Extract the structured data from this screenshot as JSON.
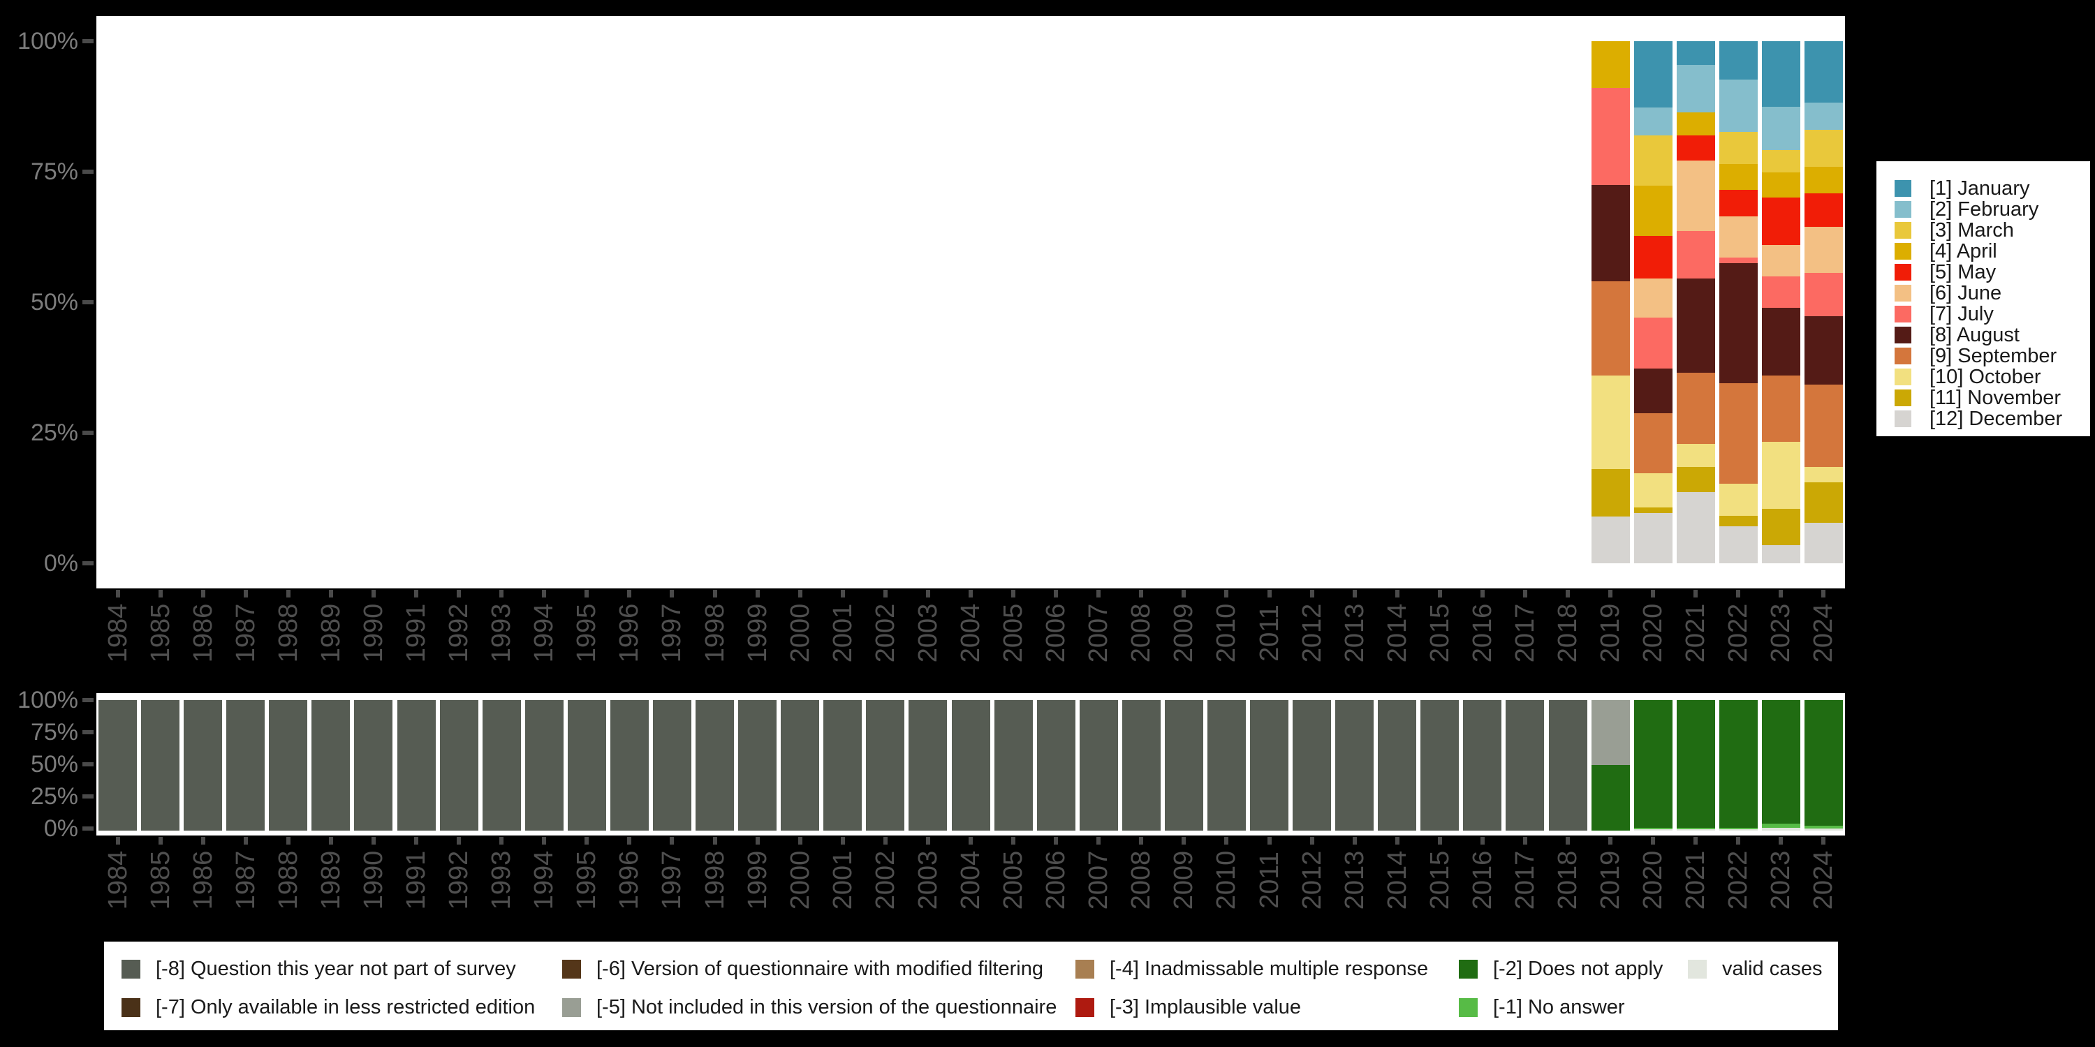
{
  "axes": {
    "y_tick_labels": [
      "100%",
      "75%",
      "50%",
      "25%",
      "0%"
    ],
    "y_tick_values": [
      100,
      75,
      50,
      25,
      0
    ],
    "years": [
      "1984",
      "1985",
      "1986",
      "1987",
      "1988",
      "1989",
      "1990",
      "1991",
      "1992",
      "1993",
      "1994",
      "1995",
      "1996",
      "1997",
      "1998",
      "1999",
      "2000",
      "2001",
      "2002",
      "2003",
      "2004",
      "2005",
      "2006",
      "2007",
      "2008",
      "2009",
      "2010",
      "2011",
      "2012",
      "2013",
      "2014",
      "2015",
      "2016",
      "2017",
      "2018",
      "2019",
      "2020",
      "2021",
      "2022",
      "2023",
      "2024"
    ]
  },
  "legend_months": {
    "items": [
      {
        "label": "[1] January",
        "color": "#3D93AE"
      },
      {
        "label": "[2] February",
        "color": "#85BECC"
      },
      {
        "label": "[3] March",
        "color": "#E9C83B"
      },
      {
        "label": "[4] April",
        "color": "#DCAE00"
      },
      {
        "label": "[5] May",
        "color": "#F11D07"
      },
      {
        "label": "[6] June",
        "color": "#F3C084"
      },
      {
        "label": "[7] July",
        "color": "#FC6A62"
      },
      {
        "label": "[8] August",
        "color": "#541B16"
      },
      {
        "label": "[9] September",
        "color": "#D4763C"
      },
      {
        "label": "[10] October",
        "color": "#F2E080"
      },
      {
        "label": "[11] November",
        "color": "#CBA805"
      },
      {
        "label": "[12] December",
        "color": "#D6D4D1"
      }
    ]
  },
  "legend_missing": {
    "columns": [
      [
        {
          "label": "[-8] Question this year not part of survey",
          "color": "#565C53"
        },
        {
          "label": "[-7] Only available in less restricted edition",
          "color": "#4A3118"
        }
      ],
      [
        {
          "label": "[-6] Version of questionnaire with modified filtering",
          "color": "#543619"
        },
        {
          "label": "[-5] Not included in this version of the questionnaire",
          "color": "#999E94"
        }
      ],
      [
        {
          "label": "[-4] Inadmissable multiple response",
          "color": "#A87F52"
        },
        {
          "label": "[-3] Implausible value",
          "color": "#AE1A10"
        }
      ],
      [
        {
          "label": "[-2] Does not apply",
          "color": "#206C12"
        },
        {
          "label": "[-1] No answer",
          "color": "#57BB46"
        }
      ],
      [
        {
          "label": "valid cases",
          "color": "#E2E6DE"
        }
      ]
    ]
  },
  "chart_data": [
    {
      "type": "bar",
      "stacked": true,
      "unit": "percent",
      "title": "",
      "xlabel": "",
      "ylabel": "",
      "ylim": [
        0,
        100
      ],
      "grid": false,
      "legend_position": "right",
      "categories_ref": "axes.years",
      "note_years_without_bars": "1984-2018 have no valid cases, no bars drawn",
      "stack_order_top_to_bottom_ref": "legend_months.items",
      "values_by_year": {
        "2019": {
          "[4] April": 9.0,
          "[7] July": 18.5,
          "[8] August": 18.5,
          "[9] September": 18.0,
          "[10] October": 18.0,
          "[11] November": 9.0,
          "[12] December": 9.0
        },
        "2020": {
          "[1] January": 12.7,
          "[2] February": 5.4,
          "[3] March": 9.6,
          "[4] April": 9.6,
          "[5] May": 8.2,
          "[6] June": 7.4,
          "[7] July": 9.8,
          "[8] August": 8.6,
          "[9] September": 11.4,
          "[10] October": 6.6,
          "[11] November": 1.1,
          "[12] December": 9.6
        },
        "2021": {
          "[1] January": 4.5,
          "[2] February": 9.1,
          "[4] April": 4.5,
          "[5] May": 4.7,
          "[6] June": 13.6,
          "[7] July": 9.1,
          "[8] August": 18.0,
          "[9] September": 13.6,
          "[10] October": 4.4,
          "[11] November": 4.8,
          "[12] December": 13.7
        },
        "2022": {
          "[1] January": 7.3,
          "[2] February": 10.1,
          "[3] March": 6.1,
          "[4] April": 5.0,
          "[5] May": 5.1,
          "[6] June": 7.9,
          "[7] July": 1.0,
          "[8] August": 23.0,
          "[9] September": 19.2,
          "[10] October": 6.2,
          "[11] November": 2.0,
          "[12] December": 7.1
        },
        "2023": {
          "[1] January": 12.6,
          "[2] February": 8.2,
          "[3] March": 4.3,
          "[4] April": 4.9,
          "[5] May": 9.1,
          "[6] June": 6.0,
          "[7] July": 6.0,
          "[8] August": 12.9,
          "[9] September": 12.7,
          "[10] October": 12.9,
          "[11] November": 6.9,
          "[12] December": 3.5
        },
        "2024": {
          "[1] January": 11.7,
          "[2] February": 5.3,
          "[3] March": 7.0,
          "[4] April": 5.2,
          "[5] May": 6.4,
          "[6] June": 8.8,
          "[7] July": 8.3,
          "[8] August": 13.1,
          "[9] September": 15.7,
          "[10] October": 3.0,
          "[11] November": 7.8,
          "[12] December": 7.7
        }
      }
    },
    {
      "type": "bar",
      "stacked": true,
      "unit": "percent",
      "title": "",
      "xlabel": "",
      "ylabel": "",
      "ylim": [
        0,
        100
      ],
      "grid": false,
      "legend_position": "bottom",
      "categories_ref": "axes.years",
      "stack_order_top_to_bottom_ref": "legend_missing.columns (flattened)",
      "default_for_1984_to_2018": {
        "[-8] Question this year not part of survey": 100
      },
      "values_by_year": {
        "2019": {
          "[-5] Not included in this version of the questionnaire": 49.8,
          "[-2] Does not apply": 50.2
        },
        "2020": {
          "[-2] Does not apply": 97.7,
          "[-1] No answer": 1.3,
          "valid cases": 1.0
        },
        "2021": {
          "[-2] Does not apply": 97.7,
          "[-1] No answer": 1.3,
          "valid cases": 1.0
        },
        "2022": {
          "[-2] Does not apply": 97.8,
          "[-1] No answer": 1.2,
          "valid cases": 1.0
        },
        "2023": {
          "[-2] Does not apply": 94.8,
          "[-1] No answer": 3.2,
          "valid cases": 2.0
        },
        "2024": {
          "[-2] Does not apply": 96.4,
          "[-1] No answer": 2.2,
          "valid cases": 1.4
        }
      }
    }
  ]
}
